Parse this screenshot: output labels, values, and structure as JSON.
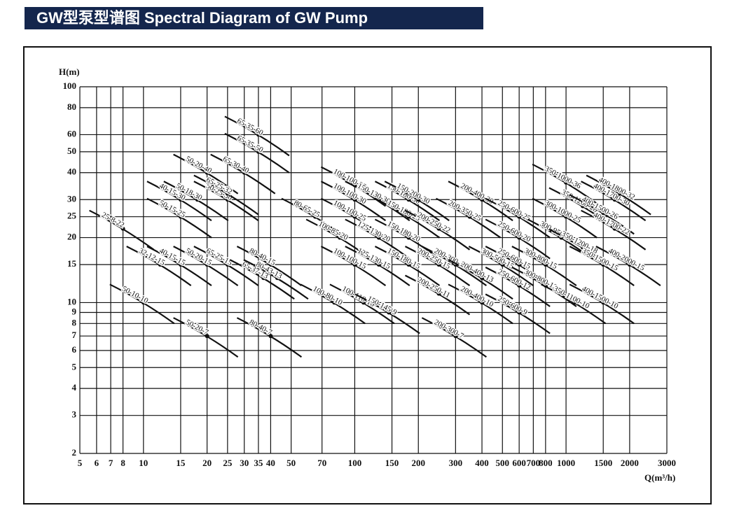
{
  "chart_data": {
    "type": "scatter",
    "title": "GW型泵型谱图  Spectral Diagram of GW Pump",
    "x_label": "Q(m³/h)",
    "y_label": "H(m)",
    "log_x": true,
    "log_y": true,
    "grid": true,
    "color": "#111111",
    "xlim": [
      5,
      3000
    ],
    "ylim": [
      2,
      100
    ],
    "xticks": [
      5,
      6,
      7,
      8,
      10,
      15,
      20,
      25,
      30,
      35,
      40,
      50,
      70,
      100,
      150,
      200,
      300,
      400,
      500,
      600,
      700,
      800,
      1000,
      1500,
      2000,
      3000
    ],
    "yticks": [
      2,
      3,
      4,
      5,
      6,
      7,
      8,
      9,
      10,
      15,
      20,
      25,
      30,
      40,
      50,
      60,
      80,
      100
    ],
    "point_labels": [
      "25-8-22",
      "32-12-15",
      "40-15-15",
      "50-20-15",
      "65-25-15",
      "50-10-10",
      "50-20-7",
      "50-15-25",
      "40-15-30",
      "50-18-30",
      "50-20-40",
      "50-25-30",
      "65-25-32",
      "65-30-40",
      "65-35-60",
      "65-35-50",
      "65-37-13",
      "80-40-15",
      "80-43-13",
      "80-40-7",
      "80-65-25",
      "100-100-35",
      "100-100-30",
      "100-100-25",
      "100-85-20",
      "100-100-15",
      "100-80-10",
      "100-110-10",
      "150-145-9",
      "125-130-20",
      "125-130-15",
      "150-130-30",
      "150-180-30",
      "150-180-25",
      "150-180-20",
      "150-180-15",
      "150-200-30",
      "200-250-22",
      "200-250-15",
      "200-300-15",
      "200-250-11",
      "200-300-7",
      "200-400-30",
      "200-350-25",
      "200-400-13",
      "200-400-10",
      "250-600-25",
      "250-600-20",
      "250-600-15",
      "250-600-12",
      "250-600-9",
      "300-500-15",
      "300-800-15",
      "300-800-12",
      "300-950-20",
      "350-1000-36",
      "350-1200-28",
      "300-1000-25",
      "350-1200-18",
      "350-1100-10",
      "400-1700-30",
      "400-1800-32",
      "400-1500-26",
      "400-1700-22",
      "400-2000-15",
      "350-1500-15",
      "400-1500-10"
    ],
    "x": [
      8,
      12,
      15,
      20,
      25,
      10,
      20,
      15,
      15,
      18,
      20,
      25,
      25,
      30,
      35,
      35,
      37,
      40,
      43,
      40,
      65,
      100,
      100,
      100,
      85,
      100,
      80,
      110,
      145,
      130,
      130,
      130,
      180,
      180,
      180,
      180,
      200,
      250,
      250,
      300,
      250,
      300,
      400,
      350,
      400,
      400,
      600,
      600,
      600,
      600,
      600,
      500,
      800,
      800,
      950,
      1000,
      1200,
      1000,
      1200,
      1100,
      1700,
      1800,
      1500,
      1700,
      2000,
      1500,
      1500
    ],
    "values": [
      22,
      15,
      15,
      15,
      15,
      10,
      7,
      25,
      30,
      30,
      40,
      30,
      32,
      40,
      60,
      50,
      13,
      15,
      13,
      7,
      25,
      35,
      30,
      25,
      20,
      15,
      10,
      10,
      9,
      20,
      15,
      30,
      30,
      25,
      20,
      15,
      30,
      22,
      15,
      15,
      11,
      7,
      30,
      25,
      13,
      10,
      25,
      20,
      15,
      12,
      9,
      15,
      15,
      12,
      20,
      36,
      28,
      25,
      18,
      10,
      30,
      32,
      26,
      22,
      15,
      15,
      10
    ]
  }
}
